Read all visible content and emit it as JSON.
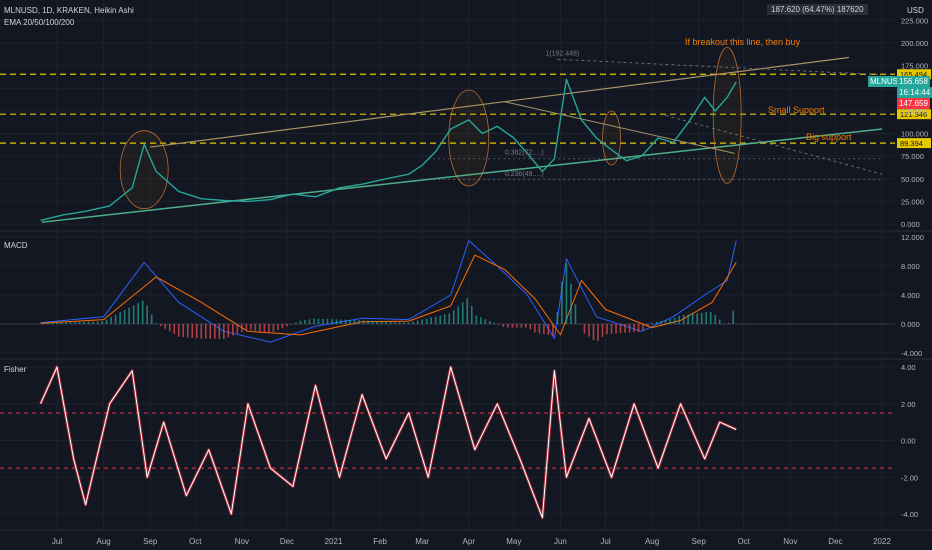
{
  "header": {
    "symbol_line": "MLNUSD, 1D, KRAKEN, Heikin Ashi",
    "ema_line": "EMA 20/50/100/200",
    "measure_box": "187.620 (64.47%) 187620",
    "currency": "USD"
  },
  "price_tags": {
    "symbol": "MLNUSD",
    "last": "156.658",
    "countdown": "16:14:44",
    "ema": "147.659"
  },
  "chart_data": [
    {
      "type": "line",
      "pane": "price",
      "title": "MLNUSD, 1D, KRAKEN, Heikin Ashi",
      "ylim": [
        0,
        225
      ],
      "y_ticks": [
        "225.000",
        "200.000",
        "175.000",
        "150.000",
        "125.000",
        "100.000",
        "75.000",
        "50.000",
        "25.000",
        "0.000"
      ],
      "x_ticks": [
        "Jul",
        "Aug",
        "Sep",
        "Oct",
        "Nov",
        "Dec",
        "2021",
        "Feb",
        "Mar",
        "Apr",
        "May",
        "Jun",
        "Jul",
        "Aug",
        "Sep",
        "Oct",
        "Nov",
        "Dec",
        "2022"
      ],
      "horizontal_levels": [
        {
          "value": 165.494,
          "label": "165.494",
          "color": "#e5c800"
        },
        {
          "value": 121.346,
          "label": "121.346",
          "color": "#e5c800"
        },
        {
          "value": 89.394,
          "label": "89.394",
          "color": "#e5c800"
        }
      ],
      "fib_labels": [
        "1(182.448)",
        "0.382(72.…)",
        "0.236(49.…)"
      ],
      "annotations": [
        "If breakout this line, then buy",
        "Small Support",
        "Big support"
      ],
      "series": [
        {
          "name": "",
          "kind": "heikin-ashi close",
          "color": "#26a69a",
          "x": [
            "2020-06-20",
            "2020-07-05",
            "2020-07-20",
            "2020-08-05",
            "2020-08-20",
            "2020-08-28",
            "2020-09-05",
            "2020-09-20",
            "2020-10-05",
            "2020-10-20",
            "2020-11-05",
            "2020-11-20",
            "2020-12-05",
            "2020-12-20",
            "2021-01-05",
            "2021-01-20",
            "2021-02-05",
            "2021-02-20",
            "2021-03-01",
            "2021-03-10",
            "2021-03-20",
            "2021-04-01",
            "2021-04-10",
            "2021-04-20",
            "2021-05-01",
            "2021-05-10",
            "2021-05-20",
            "2021-05-28",
            "2021-06-05",
            "2021-06-15",
            "2021-06-25",
            "2021-07-05",
            "2021-07-15",
            "2021-07-25",
            "2021-08-05",
            "2021-08-15",
            "2021-08-25",
            "2021-09-05",
            "2021-09-12",
            "2021-09-20",
            "2021-09-26"
          ],
          "y": [
            4,
            10,
            14,
            20,
            40,
            88,
            58,
            36,
            28,
            26,
            25,
            27,
            33,
            30,
            40,
            44,
            50,
            55,
            65,
            80,
            105,
            115,
            100,
            108,
            95,
            78,
            58,
            72,
            160,
            115,
            95,
            82,
            70,
            75,
            95,
            90,
            112,
            140,
            125,
            140,
            157
          ]
        }
      ]
    },
    {
      "type": "line",
      "pane": "macd",
      "title": "MACD",
      "ylim": [
        -4,
        12
      ],
      "y_ticks": [
        "12.000",
        "8.000",
        "4.000",
        "0.000",
        "-4.000"
      ],
      "series": [
        {
          "name": "",
          "kind": "macd",
          "color": "#2962ff",
          "x": [
            "2020-06-20",
            "2020-08-01",
            "2020-08-28",
            "2020-09-20",
            "2020-10-20",
            "2020-11-20",
            "2020-12-20",
            "2021-01-20",
            "2021-02-20",
            "2021-03-20",
            "2021-04-01",
            "2021-04-20",
            "2021-05-10",
            "2021-05-28",
            "2021-06-05",
            "2021-06-25",
            "2021-07-25",
            "2021-08-15",
            "2021-09-05",
            "2021-09-20",
            "2021-09-26"
          ],
          "y": [
            0.2,
            1,
            8.5,
            3,
            -1,
            -2.5,
            -0.3,
            0.8,
            0.6,
            4,
            11.5,
            8,
            4,
            -2,
            9,
            1,
            -1,
            1,
            4,
            6,
            11.5
          ]
        },
        {
          "name": "",
          "kind": "signal",
          "color": "#ff6d00",
          "x": [
            "2020-06-20",
            "2020-08-01",
            "2020-09-05",
            "2020-10-05",
            "2020-11-05",
            "2020-12-10",
            "2021-01-20",
            "2021-02-20",
            "2021-03-20",
            "2021-04-05",
            "2021-04-25",
            "2021-05-15",
            "2021-06-01",
            "2021-06-15",
            "2021-07-01",
            "2021-08-01",
            "2021-08-20",
            "2021-09-10",
            "2021-09-26"
          ],
          "y": [
            0.1,
            0.6,
            6.5,
            3,
            -1,
            -1.5,
            0.3,
            0.4,
            2.5,
            9.5,
            7.5,
            3.5,
            -1.5,
            6,
            2,
            -0.5,
            0.5,
            3,
            8.5
          ]
        }
      ]
    },
    {
      "type": "line",
      "pane": "fisher",
      "title": "Fisher",
      "ylim": [
        -4.5,
        4.2
      ],
      "y_ticks": [
        "4.00",
        "2.00",
        "0.00",
        "-2.00",
        "-4.00"
      ],
      "reference_levels": [
        1.5,
        -1.5
      ],
      "series": [
        {
          "name": "",
          "kind": "fisher",
          "color": "#ffffff",
          "x": [
            "2020-06-20",
            "2020-07-01",
            "2020-07-12",
            "2020-07-20",
            "2020-08-05",
            "2020-08-20",
            "2020-08-30",
            "2020-09-10",
            "2020-09-25",
            "2020-10-10",
            "2020-10-25",
            "2020-11-05",
            "2020-11-20",
            "2020-12-05",
            "2020-12-20",
            "2021-01-05",
            "2021-01-20",
            "2021-02-05",
            "2021-02-20",
            "2021-03-05",
            "2021-03-20",
            "2021-04-05",
            "2021-04-20",
            "2021-05-05",
            "2021-05-20",
            "2021-05-28",
            "2021-06-05",
            "2021-06-20",
            "2021-07-05",
            "2021-07-20",
            "2021-08-05",
            "2021-08-20",
            "2021-09-05",
            "2021-09-15",
            "2021-09-26"
          ],
          "y": [
            2,
            4,
            -1,
            -3.5,
            2,
            3.8,
            -2,
            1,
            -3,
            -0.5,
            -4,
            2,
            -1.5,
            -2.5,
            3,
            -2,
            2.5,
            -1,
            1.5,
            -2,
            4,
            -0.5,
            2,
            -1,
            -4.2,
            3.8,
            -2,
            1.2,
            -2,
            2,
            -1.5,
            2,
            -1,
            1,
            0.6
          ]
        }
      ]
    }
  ]
}
